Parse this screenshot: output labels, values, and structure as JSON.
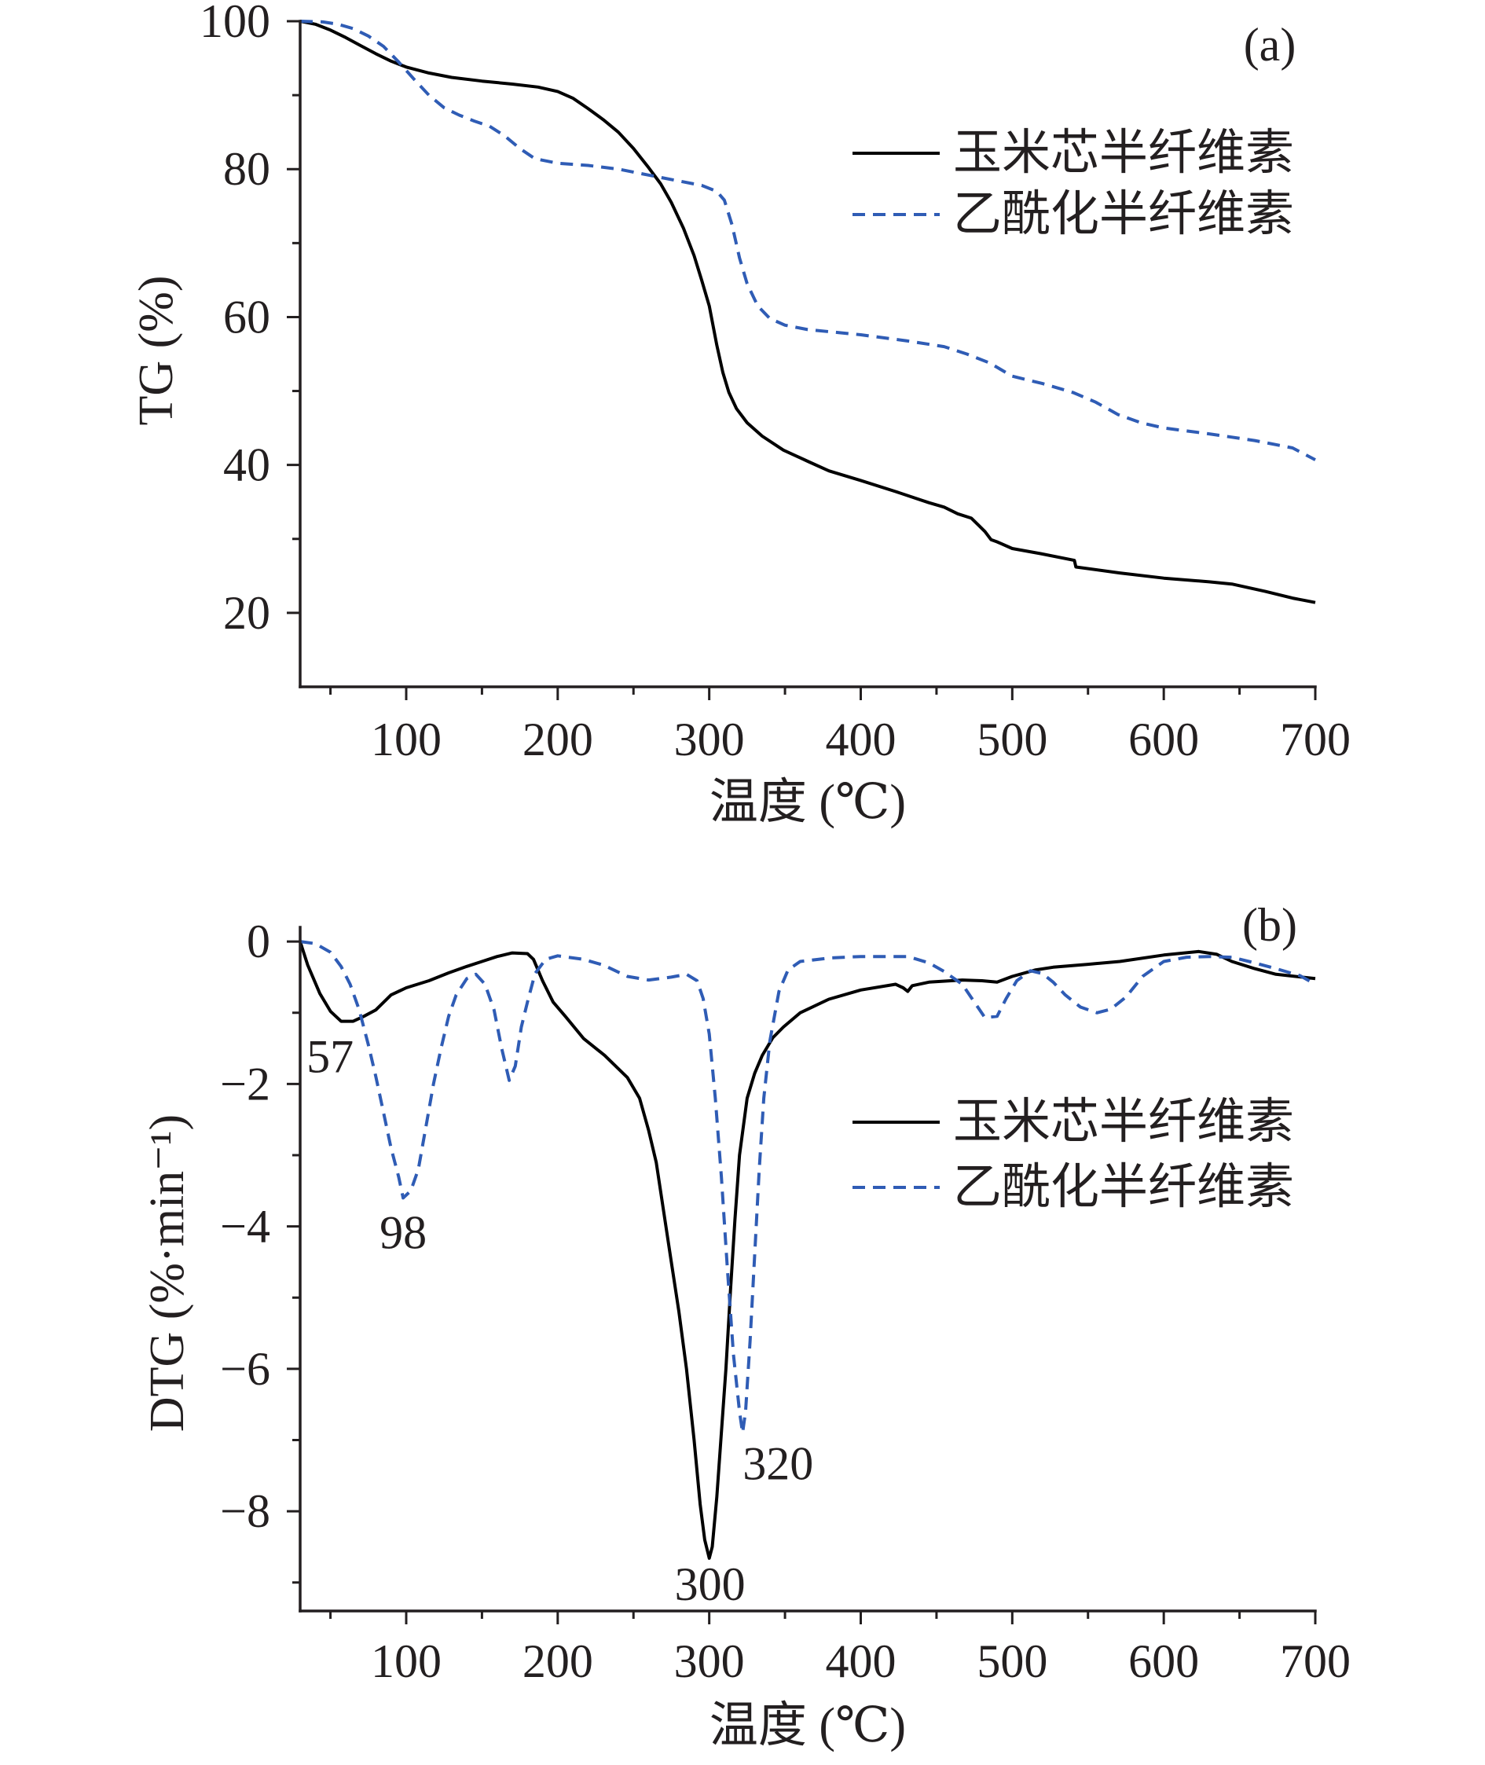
{
  "chart_data": [
    {
      "type": "line",
      "panel_label": "(a)",
      "xlabel": "温度 (℃)",
      "ylabel": "TG (%)",
      "xlim": [
        30,
        700
      ],
      "ylim": [
        10,
        100
      ],
      "grid": false,
      "legend_position": "upper right",
      "xticks": [
        100,
        200,
        300,
        400,
        500,
        600,
        700
      ],
      "xtick_labels": [
        "100",
        "200",
        "300",
        "400",
        "500",
        "600",
        "700"
      ],
      "xminor": [
        50,
        150,
        250,
        350,
        450,
        550,
        650
      ],
      "yticks": [
        20,
        40,
        60,
        80,
        100
      ],
      "ytick_labels": [
        "20",
        "40",
        "60",
        "80",
        "100"
      ],
      "yminor": [
        30,
        50,
        70,
        90
      ],
      "series": [
        {
          "name": "玉米芯半纤维素",
          "color": "#000000",
          "dashed": false,
          "x": [
            30,
            40,
            50,
            60,
            70,
            80,
            90,
            100,
            115,
            130,
            150,
            170,
            187,
            200,
            210,
            220,
            230,
            240,
            250,
            260,
            268,
            275,
            283,
            290,
            295,
            300,
            305,
            309,
            313,
            318,
            325,
            335,
            349,
            365,
            379,
            400,
            423,
            445,
            455,
            464,
            473,
            478,
            482,
            486,
            490,
            500,
            519,
            541,
            542,
            571,
            600,
            630,
            645,
            667,
            685,
            700
          ],
          "y": [
            100,
            99.6,
            98.8,
            97.8,
            96.7,
            95.6,
            94.6,
            93.8,
            93.0,
            92.4,
            91.9,
            91.5,
            91.1,
            90.5,
            89.6,
            88.2,
            86.7,
            85.0,
            82.8,
            80.2,
            78.0,
            75.5,
            72.0,
            68.3,
            65.0,
            61.5,
            56.2,
            52.5,
            49.8,
            47.6,
            45.7,
            43.9,
            42.0,
            40.5,
            39.2,
            37.9,
            36.4,
            34.9,
            34.3,
            33.4,
            32.8,
            31.8,
            31.0,
            29.9,
            29.6,
            28.7,
            28.0,
            27.1,
            26.2,
            25.4,
            24.7,
            24.2,
            23.9,
            22.9,
            22.0,
            21.4
          ]
        },
        {
          "name": "乙酰化半纤维素",
          "color": "#2f5cb5",
          "dashed": true,
          "x": [
            30,
            45,
            55,
            65,
            75,
            85,
            95,
            105,
            115,
            125,
            135,
            145,
            155,
            165,
            175,
            185,
            200,
            220,
            240,
            260,
            280,
            295,
            305,
            310,
            315,
            320,
            325,
            332,
            340,
            350,
            365,
            400,
            430,
            455,
            470,
            485,
            500,
            520,
            540,
            555,
            570,
            585,
            600,
            630,
            660,
            685,
            700
          ],
          "y": [
            100,
            99.9,
            99.6,
            99.0,
            98.0,
            96.6,
            94.5,
            92.2,
            90.0,
            88.3,
            87.3,
            86.5,
            85.8,
            84.5,
            82.8,
            81.4,
            80.8,
            80.5,
            80.0,
            79.2,
            78.4,
            77.8,
            77.0,
            75.8,
            72.5,
            68.0,
            64.5,
            61.5,
            59.8,
            58.9,
            58.3,
            57.6,
            56.8,
            56.0,
            55.0,
            53.8,
            52.0,
            51.0,
            49.8,
            48.5,
            46.8,
            45.7,
            45.0,
            44.2,
            43.3,
            42.3,
            40.7
          ]
        }
      ],
      "annotations": []
    },
    {
      "type": "line",
      "panel_label": "(b)",
      "xlabel": "温度 (℃)",
      "ylabel": "DTG (%·min⁻¹)",
      "xlim": [
        30,
        700
      ],
      "ylim": [
        -9.4,
        0.2
      ],
      "grid": false,
      "legend_position": "center right",
      "xticks": [
        100,
        200,
        300,
        400,
        500,
        600,
        700
      ],
      "xtick_labels": [
        "100",
        "200",
        "300",
        "400",
        "500",
        "600",
        "700"
      ],
      "xminor": [
        50,
        150,
        250,
        350,
        450,
        550,
        650
      ],
      "yticks": [
        0,
        -2,
        -4,
        -6,
        -8
      ],
      "ytick_labels": [
        "0",
        "−2",
        "−4",
        "−6",
        "−8"
      ],
      "yminor": [
        -1,
        -3,
        -5,
        -7,
        -9
      ],
      "series": [
        {
          "name": "玉米芯半纤维素",
          "color": "#000000",
          "dashed": false,
          "x": [
            30,
            35,
            43,
            50,
            57,
            65,
            72,
            80,
            90,
            100,
            115,
            128,
            140,
            150,
            160,
            170,
            180,
            184,
            190,
            197,
            205,
            217,
            231,
            246,
            254,
            260,
            265,
            270,
            275,
            280,
            285,
            290,
            294,
            297,
            300,
            302,
            305,
            308,
            311,
            314,
            317,
            320,
            325,
            330,
            335,
            342,
            349,
            360,
            379,
            400,
            423,
            428,
            431,
            434,
            445,
            467,
            480,
            490,
            500,
            515,
            527,
            550,
            571,
            600,
            623,
            635,
            645,
            660,
            674,
            700
          ],
          "y": [
            0,
            -0.33,
            -0.73,
            -0.98,
            -1.12,
            -1.12,
            -1.05,
            -0.96,
            -0.75,
            -0.65,
            -0.55,
            -0.44,
            -0.35,
            -0.28,
            -0.21,
            -0.16,
            -0.17,
            -0.25,
            -0.55,
            -0.85,
            -1.05,
            -1.36,
            -1.6,
            -1.91,
            -2.2,
            -2.65,
            -3.1,
            -3.8,
            -4.5,
            -5.2,
            -6.0,
            -7.0,
            -7.9,
            -8.4,
            -8.66,
            -8.5,
            -7.8,
            -6.9,
            -6.0,
            -4.9,
            -3.9,
            -3.0,
            -2.2,
            -1.85,
            -1.6,
            -1.35,
            -1.2,
            -1.0,
            -0.81,
            -0.68,
            -0.6,
            -0.65,
            -0.7,
            -0.62,
            -0.57,
            -0.54,
            -0.55,
            -0.57,
            -0.49,
            -0.4,
            -0.36,
            -0.32,
            -0.28,
            -0.19,
            -0.14,
            -0.18,
            -0.28,
            -0.38,
            -0.46,
            -0.52
          ]
        },
        {
          "name": "乙酰化半纤维素",
          "color": "#2f5cb5",
          "dashed": true,
          "x": [
            30,
            40,
            50,
            57,
            63,
            69,
            75,
            80,
            85,
            90,
            95,
            98,
            103,
            108,
            113,
            118,
            123,
            128,
            133,
            140,
            146,
            152,
            158,
            163,
            168,
            172,
            176,
            180,
            185,
            192,
            200,
            217,
            230,
            246,
            260,
            275,
            285,
            292,
            296,
            300,
            304,
            308,
            312,
            316,
            320,
            322,
            324,
            327,
            330,
            333,
            336,
            340,
            346,
            352,
            360,
            380,
            400,
            431,
            445,
            455,
            467,
            475,
            482,
            490,
            496,
            503,
            512,
            520,
            527,
            535,
            545,
            556,
            565,
            575,
            586,
            600,
            615,
            630,
            645,
            660,
            674,
            690,
            700
          ],
          "y": [
            0,
            -0.03,
            -0.15,
            -0.35,
            -0.6,
            -0.96,
            -1.45,
            -1.9,
            -2.4,
            -2.9,
            -3.3,
            -3.6,
            -3.5,
            -3.2,
            -2.6,
            -2.0,
            -1.5,
            -1.05,
            -0.75,
            -0.52,
            -0.46,
            -0.6,
            -0.96,
            -1.5,
            -1.95,
            -1.75,
            -1.2,
            -0.85,
            -0.45,
            -0.25,
            -0.2,
            -0.25,
            -0.33,
            -0.49,
            -0.54,
            -0.5,
            -0.46,
            -0.55,
            -0.8,
            -1.3,
            -2.2,
            -3.3,
            -4.6,
            -5.8,
            -6.6,
            -6.9,
            -6.6,
            -5.6,
            -4.4,
            -3.2,
            -2.2,
            -1.4,
            -0.7,
            -0.4,
            -0.28,
            -0.23,
            -0.21,
            -0.21,
            -0.3,
            -0.42,
            -0.6,
            -0.85,
            -1.07,
            -1.05,
            -0.8,
            -0.55,
            -0.41,
            -0.45,
            -0.57,
            -0.75,
            -0.92,
            -1.0,
            -0.95,
            -0.78,
            -0.49,
            -0.28,
            -0.22,
            -0.21,
            -0.22,
            -0.3,
            -0.38,
            -0.48,
            -0.6
          ]
        }
      ],
      "annotations": [
        {
          "text": "57",
          "x": 57,
          "y": -1.12
        },
        {
          "text": "98",
          "x": 98,
          "y": -3.6
        },
        {
          "text": "300",
          "x": 300,
          "y": -8.66
        },
        {
          "text": "320",
          "x": 320,
          "y": -6.9
        }
      ]
    }
  ]
}
